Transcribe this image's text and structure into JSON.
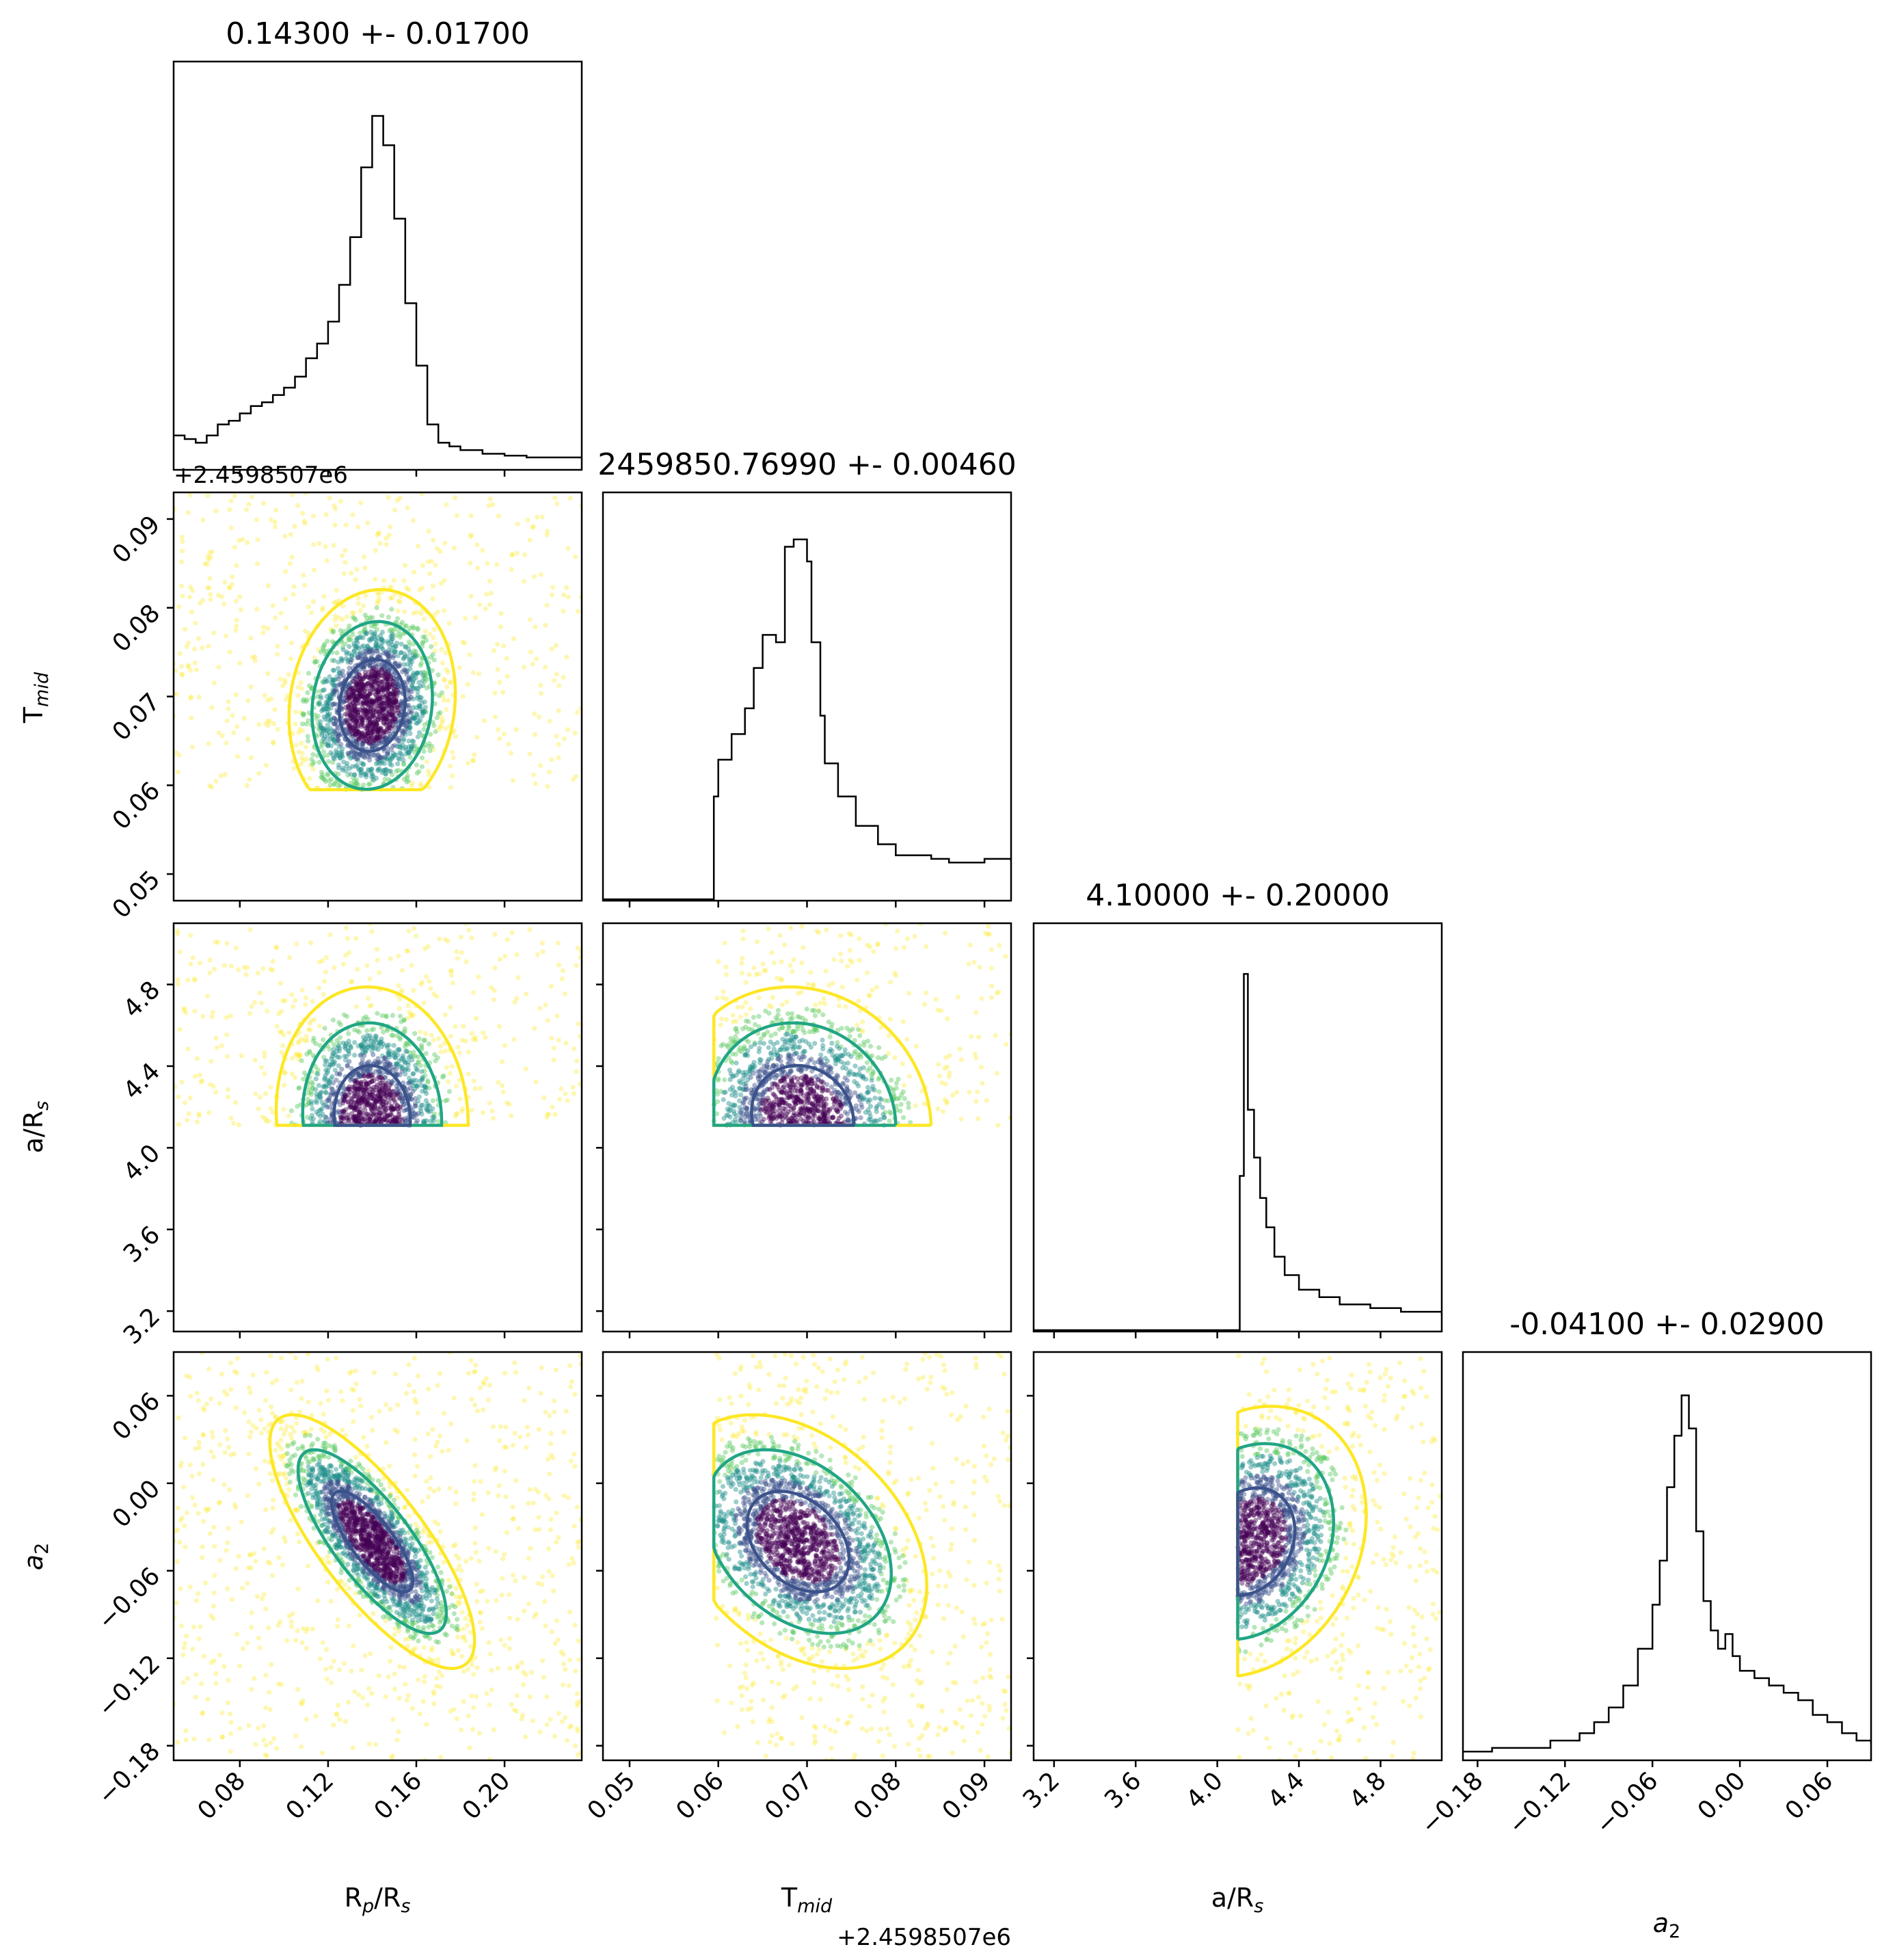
{
  "chart_data": {
    "type": "scatter",
    "description_kind": "corner-plot",
    "params": [
      {
        "label": "Rₚ/Rₛ",
        "label_main": "R",
        "label_sub1": "p",
        "label_mid": "/R",
        "label_sub2": "s",
        "title": "0.14300 +- 0.01700",
        "range": [
          0.05,
          0.235
        ],
        "ticks": [
          0.08,
          0.12,
          0.16,
          0.2
        ],
        "tick_labels": [
          "0.08",
          "0.12",
          "0.16",
          "0.20"
        ],
        "hist_x": [
          0.05,
          0.055,
          0.06,
          0.065,
          0.07,
          0.075,
          0.08,
          0.085,
          0.09,
          0.095,
          0.1,
          0.105,
          0.11,
          0.115,
          0.12,
          0.125,
          0.13,
          0.135,
          0.14,
          0.145,
          0.15,
          0.155,
          0.16,
          0.165,
          0.17,
          0.175,
          0.18,
          0.19,
          0.2,
          0.21,
          0.22,
          0.235
        ],
        "hist_y": [
          0.09,
          0.08,
          0.07,
          0.09,
          0.12,
          0.13,
          0.15,
          0.17,
          0.18,
          0.2,
          0.22,
          0.25,
          0.3,
          0.34,
          0.4,
          0.5,
          0.63,
          0.82,
          0.96,
          0.88,
          0.68,
          0.45,
          0.28,
          0.12,
          0.07,
          0.06,
          0.05,
          0.04,
          0.035,
          0.03,
          0.03,
          0.03
        ]
      },
      {
        "label": "T_mid",
        "label_main": "T",
        "label_sub1": "mid",
        "title": "2459850.76990 +- 0.00460",
        "offset_label": "+2.4598507e6",
        "range": [
          0.047,
          0.093
        ],
        "ticks": [
          0.05,
          0.06,
          0.07,
          0.08,
          0.09
        ],
        "tick_labels": [
          "0.05",
          "0.06",
          "0.07",
          "0.08",
          "0.09"
        ],
        "hist_x": [
          0.047,
          0.052,
          0.0588,
          0.0595,
          0.06,
          0.0615,
          0.063,
          0.064,
          0.065,
          0.0665,
          0.0675,
          0.0685,
          0.07,
          0.0705,
          0.0715,
          0.072,
          0.0735,
          0.0755,
          0.078,
          0.08,
          0.082,
          0.084,
          0.086,
          0.088,
          0.09,
          0.093
        ],
        "hist_y": [
          0.0,
          0.0,
          0.0,
          0.28,
          0.38,
          0.45,
          0.52,
          0.63,
          0.72,
          0.7,
          0.96,
          0.98,
          0.92,
          0.7,
          0.5,
          0.37,
          0.28,
          0.2,
          0.15,
          0.12,
          0.12,
          0.11,
          0.1,
          0.1,
          0.11,
          0.1
        ]
      },
      {
        "label": "a/Rₛ",
        "label_main": "a/R",
        "label_sub1": "s",
        "title": "4.10000 +- 0.20000",
        "range": [
          3.1,
          5.1
        ],
        "ticks": [
          3.2,
          3.6,
          4.0,
          4.4,
          4.8
        ],
        "tick_labels": [
          "3.2",
          "3.6",
          "4.0",
          "4.4",
          "4.8"
        ],
        "hist_x": [
          3.1,
          3.5,
          4.0,
          4.09,
          4.11,
          4.13,
          4.15,
          4.18,
          4.21,
          4.24,
          4.28,
          4.33,
          4.4,
          4.5,
          4.6,
          4.75,
          4.9,
          5.1
        ],
        "hist_y": [
          0.0,
          0.0,
          0.0,
          0.0,
          0.42,
          0.97,
          0.6,
          0.47,
          0.36,
          0.28,
          0.2,
          0.15,
          0.11,
          0.09,
          0.07,
          0.06,
          0.05,
          0.04
        ]
      },
      {
        "label": "a₂",
        "label_main": "a",
        "label_sub1": "2",
        "title": "-0.04100 +- 0.02900",
        "range": [
          -0.19,
          0.09
        ],
        "ticks": [
          -0.18,
          -0.12,
          -0.06,
          0.0,
          0.06
        ],
        "tick_labels": [
          "−0.18",
          "−0.12",
          "−0.06",
          "0.00",
          "0.06"
        ],
        "hist_x": [
          -0.19,
          -0.17,
          -0.15,
          -0.13,
          -0.11,
          -0.1,
          -0.09,
          -0.08,
          -0.07,
          -0.06,
          -0.055,
          -0.05,
          -0.045,
          -0.04,
          -0.035,
          -0.03,
          -0.025,
          -0.02,
          -0.015,
          -0.01,
          -0.005,
          0.0,
          0.01,
          0.02,
          0.03,
          0.04,
          0.05,
          0.06,
          0.07,
          0.08,
          0.09
        ],
        "hist_y": [
          0.02,
          0.03,
          0.03,
          0.05,
          0.07,
          0.1,
          0.14,
          0.2,
          0.3,
          0.42,
          0.54,
          0.74,
          0.88,
          0.99,
          0.9,
          0.62,
          0.43,
          0.35,
          0.3,
          0.34,
          0.28,
          0.24,
          0.22,
          0.2,
          0.18,
          0.16,
          0.12,
          0.1,
          0.07,
          0.05,
          0.04
        ]
      }
    ],
    "pairs": [
      {
        "row": 1,
        "col": 0,
        "mean": [
          0.14,
          0.069
        ],
        "sd": [
          0.013,
          0.0045
        ],
        "corr": 0.1,
        "xcut": null,
        "ycut": 0.0595
      },
      {
        "row": 2,
        "col": 0,
        "mean": [
          0.14,
          4.15
        ],
        "sd": [
          0.015,
          0.22
        ],
        "corr": -0.05,
        "xcut": null,
        "ycut": 4.11
      },
      {
        "row": 3,
        "col": 0,
        "mean": [
          0.14,
          -0.04
        ],
        "sd": [
          0.016,
          0.03
        ],
        "corr": -0.78,
        "xcut": null,
        "ycut": null
      },
      {
        "row": 2,
        "col": 1,
        "mean": [
          0.0695,
          4.15
        ],
        "sd": [
          0.005,
          0.22
        ],
        "corr": -0.1,
        "xcut": 0.0595,
        "ycut": 4.11
      },
      {
        "row": 3,
        "col": 1,
        "mean": [
          0.069,
          -0.04
        ],
        "sd": [
          0.005,
          0.03
        ],
        "corr": -0.35,
        "xcut": 0.0595,
        "ycut": null
      },
      {
        "row": 3,
        "col": 2,
        "mean": [
          4.15,
          -0.04
        ],
        "sd": [
          0.2,
          0.032
        ],
        "corr": 0.2,
        "xcut": 4.1,
        "ycut": null
      }
    ],
    "contour_colors": [
      "#fde725",
      "#21a585",
      "#3b528b"
    ],
    "density_colors": [
      "#fde725",
      "#5ec962",
      "#21918c",
      "#3b528b",
      "#440154"
    ],
    "hist_color": "#000000"
  }
}
